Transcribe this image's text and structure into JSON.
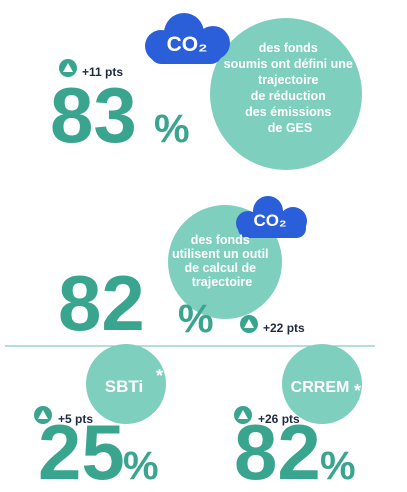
{
  "blocks": [
    {
      "cloud": "CO₂",
      "text": [
        "des fonds",
        "soumis ont défini une",
        "trajectoire",
        "de réduction",
        "des émissions",
        "de GES"
      ],
      "change": "+11 pts",
      "number": 83,
      "unit": "%"
    },
    {
      "cloud": "CO₂",
      "text": [
        "des fonds",
        "utilisent un outil",
        "de calcul de",
        "trajectoire"
      ],
      "change": "+22 pts",
      "number": 82,
      "unit": "%"
    },
    {
      "label": "SBTi",
      "note": "*",
      "change": "+5 pts",
      "number": 25,
      "unit": "%"
    },
    {
      "label": "CRREM",
      "note": "*",
      "change": "+26 pts",
      "number": 82,
      "unit": "%"
    }
  ]
}
